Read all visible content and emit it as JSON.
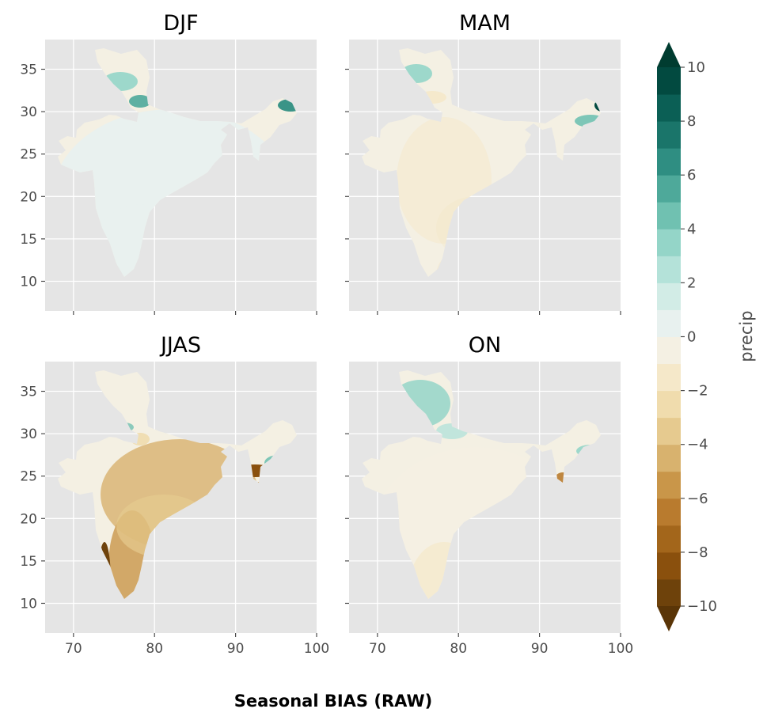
{
  "figure": {
    "suptitle": "Seasonal BIAS (RAW)"
  },
  "chart_data": {
    "type": "heatmap",
    "panels": [
      {
        "name": "DJF",
        "title": "DJF"
      },
      {
        "name": "MAM",
        "title": "MAM"
      },
      {
        "name": "JJAS",
        "title": "JJAS"
      },
      {
        "name": "ON",
        "title": "ON"
      }
    ],
    "xlim": [
      66.5,
      100
    ],
    "ylim": [
      6.5,
      38.5
    ],
    "xticks": [
      70,
      80,
      90,
      100
    ],
    "yticks": [
      10,
      15,
      20,
      25,
      30,
      35
    ],
    "xtick_labels": [
      "70",
      "80",
      "90",
      "100"
    ],
    "ytick_labels": [
      "10",
      "15",
      "20",
      "25",
      "30",
      "35"
    ],
    "colorbar": {
      "label": "precip",
      "levels": [
        -10,
        -9,
        -8,
        -7,
        -6,
        -5,
        -4,
        -3,
        -2,
        -1,
        0,
        1,
        2,
        3,
        4,
        5,
        6,
        7,
        8,
        9,
        10
      ],
      "tick_values": [
        -10,
        -8,
        -6,
        -4,
        -2,
        0,
        2,
        4,
        6,
        8,
        10
      ],
      "tick_labels": [
        "−10",
        "−8",
        "−6",
        "−4",
        "−2",
        "0",
        "2",
        "4",
        "6",
        "8",
        "10"
      ],
      "extend": "both",
      "colors": [
        "#6e420b",
        "#8a500d",
        "#a3661b",
        "#b97b2e",
        "#c99649",
        "#d8b26e",
        "#e6ca8f",
        "#f0dcad",
        "#f5e8c9",
        "#f4f0e3",
        "#e8f1ef",
        "#d2ece6",
        "#b4e2d9",
        "#94d5c8",
        "#70c1b1",
        "#4ea99a",
        "#2f8e82",
        "#1a756a",
        "#0b5f55",
        "#024a40"
      ],
      "under_color": "#5a3507",
      "over_color": "#003c30"
    },
    "grid": true,
    "background": "#e5e5e5"
  }
}
